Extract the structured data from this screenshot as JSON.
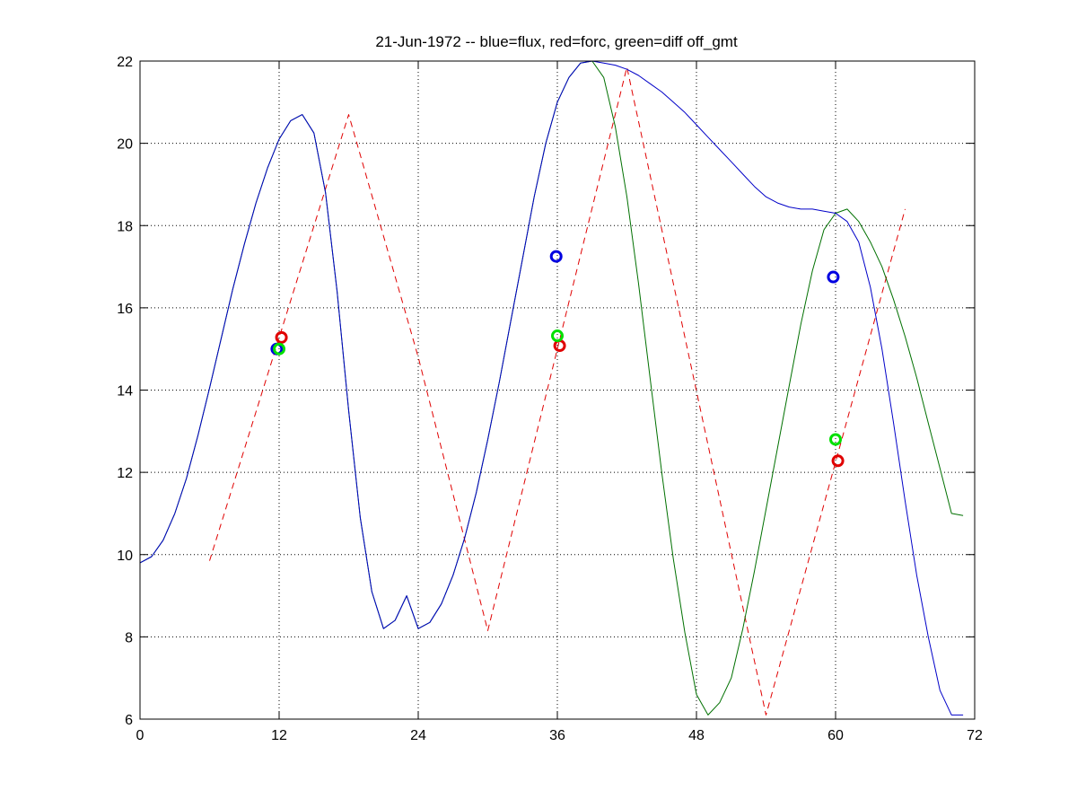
{
  "chart_data": {
    "type": "line",
    "title": "21-Jun-1972 -- blue=flux, red=forc, green=diff off_gmt",
    "xlabel": "",
    "ylabel": "",
    "xlim": [
      0,
      72
    ],
    "ylim": [
      6,
      22
    ],
    "xticks": [
      0,
      12,
      24,
      36,
      48,
      60,
      72
    ],
    "yticks": [
      6,
      8,
      10,
      12,
      14,
      16,
      18,
      20,
      22
    ],
    "xtick_labels": [
      "0",
      "12",
      "24",
      "36",
      "48",
      "60",
      "72"
    ],
    "ytick_labels": [
      "6",
      "8",
      "10",
      "12",
      "14",
      "16",
      "18",
      "20",
      "22"
    ],
    "grid": true,
    "colors": {
      "flux": "#0000c8",
      "forc": "#e00000",
      "diff": "#007000",
      "diff_marker": "#00e000"
    },
    "series": [
      {
        "style": "dashed",
        "color": "#e00000",
        "x": [
          6,
          18,
          24,
          30,
          42,
          54,
          66
        ],
        "y": [
          9.85,
          20.7,
          14.8,
          8.15,
          21.85,
          6.1,
          18.4
        ]
      },
      {
        "style": "solid",
        "color": "#007000",
        "x": [
          0,
          1,
          2,
          3,
          4,
          5,
          6,
          7,
          8,
          9,
          10,
          11,
          12,
          13,
          14,
          15,
          16,
          17,
          18,
          19,
          20,
          21,
          22,
          23,
          24,
          25,
          26,
          27,
          28,
          29,
          30,
          31,
          32,
          33,
          34,
          35,
          36,
          37,
          38,
          39,
          40,
          41,
          42,
          43,
          44,
          45,
          46,
          47,
          48,
          49,
          50,
          51,
          52,
          53,
          54,
          55,
          56,
          57,
          58,
          59,
          60,
          61,
          62,
          63,
          64,
          65,
          66,
          67,
          68,
          69,
          70,
          71
        ],
        "y": [
          9.8,
          9.95,
          10.35,
          11.0,
          11.85,
          12.9,
          14.05,
          15.25,
          16.45,
          17.55,
          18.55,
          19.4,
          20.1,
          20.55,
          20.7,
          20.25,
          18.8,
          16.4,
          13.5,
          10.9,
          9.1,
          8.2,
          8.4,
          9.0,
          8.2,
          8.35,
          8.8,
          9.5,
          10.4,
          11.5,
          12.8,
          14.2,
          15.7,
          17.2,
          18.7,
          20.0,
          21.0,
          21.6,
          21.95,
          22.0,
          21.6,
          20.4,
          18.7,
          16.6,
          14.3,
          12.0,
          9.9,
          8.1,
          6.6,
          6.1,
          6.4,
          7.0,
          8.2,
          9.6,
          11.1,
          12.6,
          14.1,
          15.6,
          16.9,
          17.9,
          18.3,
          18.4,
          18.1,
          17.6,
          17.0,
          16.2,
          15.3,
          14.3,
          13.2,
          12.1,
          11.0,
          10.95
        ]
      },
      {
        "style": "solid",
        "color": "#0000c8",
        "x": [
          0,
          1,
          2,
          3,
          4,
          5,
          6,
          7,
          8,
          9,
          10,
          11,
          12,
          13,
          14,
          15,
          16,
          17,
          18,
          19,
          20,
          21,
          22,
          23,
          24,
          25,
          26,
          27,
          28,
          29,
          30,
          31,
          32,
          33,
          34,
          35,
          36,
          37,
          38,
          39,
          40,
          41,
          42,
          43,
          44,
          45,
          46,
          47,
          48,
          49,
          50,
          51,
          52,
          53,
          54,
          55,
          56,
          57,
          58,
          59,
          60,
          61,
          62,
          63,
          64,
          65,
          66,
          67,
          68,
          69,
          70,
          71
        ],
        "y": [
          9.8,
          9.95,
          10.35,
          11.0,
          11.85,
          12.9,
          14.05,
          15.25,
          16.45,
          17.55,
          18.55,
          19.4,
          20.1,
          20.55,
          20.7,
          20.25,
          18.8,
          16.4,
          13.5,
          10.9,
          9.1,
          8.2,
          8.4,
          9.0,
          8.2,
          8.35,
          8.8,
          9.5,
          10.4,
          11.5,
          12.8,
          14.2,
          15.7,
          17.2,
          18.7,
          20.0,
          21.0,
          21.6,
          21.95,
          22.0,
          21.95,
          21.9,
          21.8,
          21.65,
          21.45,
          21.25,
          21.0,
          20.75,
          20.45,
          20.15,
          19.85,
          19.55,
          19.25,
          18.95,
          18.7,
          18.55,
          18.45,
          18.4,
          18.4,
          18.35,
          18.3,
          18.1,
          17.6,
          16.5,
          15.0,
          13.2,
          11.3,
          9.5,
          8.0,
          6.7,
          6.1,
          6.1
        ]
      }
    ],
    "markers": [
      {
        "x": 11.8,
        "y": 15.0,
        "color": "#0000e0"
      },
      {
        "x": 12.2,
        "y": 15.28,
        "color": "#e00000"
      },
      {
        "x": 12.0,
        "y": 15.0,
        "color": "#00e000"
      },
      {
        "x": 35.9,
        "y": 17.25,
        "color": "#0000e0"
      },
      {
        "x": 36.2,
        "y": 15.08,
        "color": "#e00000"
      },
      {
        "x": 36.0,
        "y": 15.32,
        "color": "#00e000"
      },
      {
        "x": 59.8,
        "y": 16.75,
        "color": "#0000e0"
      },
      {
        "x": 60.2,
        "y": 12.28,
        "color": "#e00000"
      },
      {
        "x": 60.0,
        "y": 12.8,
        "color": "#00e000"
      }
    ]
  }
}
